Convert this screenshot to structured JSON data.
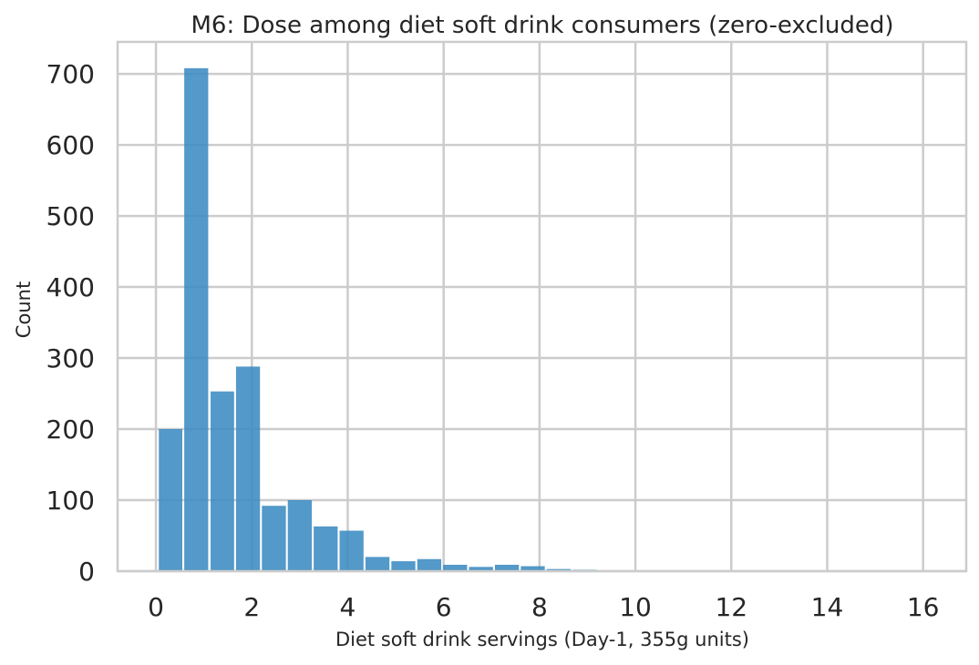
{
  "chart_data": {
    "type": "bar",
    "title": "M6: Dose among diet soft drink consumers (zero-excluded)",
    "xlabel": "Diet soft drink servings (Day-1, 355g units)",
    "ylabel": "Count",
    "xlim": [
      -0.8,
      16.9
    ],
    "ylim": [
      0,
      745
    ],
    "xticks": [
      0,
      2,
      4,
      6,
      8,
      10,
      12,
      14,
      16
    ],
    "yticks": [
      0,
      100,
      200,
      300,
      400,
      500,
      600,
      700
    ],
    "grid": true,
    "bar_color": "#3b8bc2",
    "bins": [
      {
        "x0": 0.06,
        "x1": 0.55,
        "value": 200
      },
      {
        "x0": 0.59,
        "x1": 1.09,
        "value": 708
      },
      {
        "x0": 1.14,
        "x1": 1.63,
        "value": 253
      },
      {
        "x0": 1.67,
        "x1": 2.17,
        "value": 288
      },
      {
        "x0": 2.21,
        "x1": 2.71,
        "value": 92
      },
      {
        "x0": 2.75,
        "x1": 3.25,
        "value": 100
      },
      {
        "x0": 3.29,
        "x1": 3.79,
        "value": 63
      },
      {
        "x0": 3.83,
        "x1": 4.33,
        "value": 57
      },
      {
        "x0": 4.37,
        "x1": 4.87,
        "value": 20
      },
      {
        "x0": 4.91,
        "x1": 5.41,
        "value": 14
      },
      {
        "x0": 5.45,
        "x1": 5.95,
        "value": 17
      },
      {
        "x0": 5.99,
        "x1": 6.49,
        "value": 9
      },
      {
        "x0": 6.53,
        "x1": 7.03,
        "value": 6
      },
      {
        "x0": 7.07,
        "x1": 7.57,
        "value": 9
      },
      {
        "x0": 7.61,
        "x1": 8.11,
        "value": 7
      },
      {
        "x0": 8.15,
        "x1": 8.65,
        "value": 3
      },
      {
        "x0": 8.69,
        "x1": 9.19,
        "value": 2
      },
      {
        "x0": 9.23,
        "x1": 9.73,
        "value": 1
      },
      {
        "x0": 9.77,
        "x1": 10.27,
        "value": 1
      },
      {
        "x0": 10.31,
        "x1": 10.81,
        "value": 1
      },
      {
        "x0": 10.85,
        "x1": 11.35,
        "value": 0
      },
      {
        "x0": 11.39,
        "x1": 11.89,
        "value": 1
      },
      {
        "x0": 11.93,
        "x1": 12.43,
        "value": 1
      },
      {
        "x0": 12.47,
        "x1": 12.97,
        "value": 0
      },
      {
        "x0": 13.01,
        "x1": 13.51,
        "value": 1
      },
      {
        "x0": 13.55,
        "x1": 14.05,
        "value": 0
      },
      {
        "x0": 14.09,
        "x1": 14.59,
        "value": 0
      },
      {
        "x0": 14.63,
        "x1": 15.13,
        "value": 1
      },
      {
        "x0": 15.17,
        "x1": 15.67,
        "value": 0
      },
      {
        "x0": 15.71,
        "x1": 16.21,
        "value": 0
      },
      {
        "x0": 16.25,
        "x1": 16.75,
        "value": 1
      }
    ]
  }
}
